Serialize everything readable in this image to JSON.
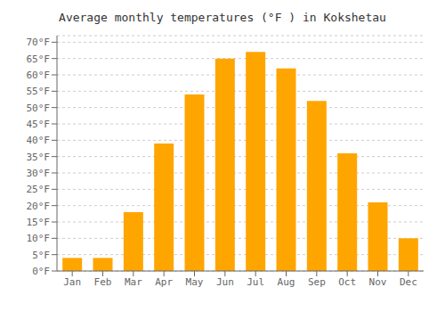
{
  "chart_data": {
    "type": "bar",
    "title": "Average monthly temperatures (°F ) in Kokshetau",
    "categories": [
      "Jan",
      "Feb",
      "Mar",
      "Apr",
      "May",
      "Jun",
      "Jul",
      "Aug",
      "Sep",
      "Oct",
      "Nov",
      "Dec"
    ],
    "values": [
      4,
      4,
      18,
      39,
      54,
      65,
      67,
      62,
      52,
      36,
      21,
      10
    ],
    "color": "#FFA500",
    "ylim": [
      0,
      72
    ],
    "yticks": [
      {
        "value": 0,
        "label": "0°F"
      },
      {
        "value": 5,
        "label": "5°F"
      },
      {
        "value": 10,
        "label": "10°F"
      },
      {
        "value": 15,
        "label": "15°F"
      },
      {
        "value": 20,
        "label": "20°F"
      },
      {
        "value": 25,
        "label": "25°F"
      },
      {
        "value": 30,
        "label": "30°F"
      },
      {
        "value": 35,
        "label": "35°F"
      },
      {
        "value": 40,
        "label": "40°F"
      },
      {
        "value": 45,
        "label": "45°F"
      },
      {
        "value": 50,
        "label": "50°F"
      },
      {
        "value": 55,
        "label": "55°F"
      },
      {
        "value": 60,
        "label": "60°F"
      },
      {
        "value": 65,
        "label": "65°F"
      },
      {
        "value": 70,
        "label": "70°F"
      }
    ],
    "grid": true
  }
}
